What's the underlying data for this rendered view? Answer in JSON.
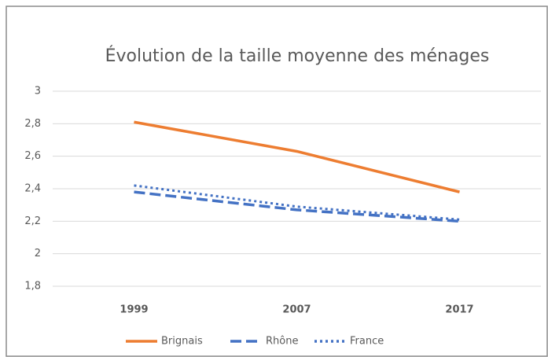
{
  "chart_data": {
    "type": "line",
    "title": "Évolution de la taille moyenne des ménages",
    "categories": [
      "1999",
      "2007",
      "2017"
    ],
    "series": [
      {
        "name": "Brignais",
        "color": "#ed7d31",
        "line_style": "solid",
        "values": [
          2.81,
          2.63,
          2.38
        ]
      },
      {
        "name": "Rhône",
        "color": "#4472c4",
        "line_style": "dashed",
        "values": [
          2.38,
          2.27,
          2.2
        ]
      },
      {
        "name": "France",
        "color": "#4472c4",
        "line_style": "dotted",
        "values": [
          2.42,
          2.29,
          2.21
        ]
      }
    ],
    "ylim": [
      1.8,
      3
    ],
    "yticks": [
      {
        "value": 1.8,
        "label": "1,8"
      },
      2,
      {
        "value": 2.2,
        "label": "2,2"
      },
      {
        "value": 2.4,
        "label": "2,4"
      },
      {
        "value": 2.6,
        "label": "2,6"
      },
      {
        "value": 2.8,
        "label": "2,8"
      },
      3
    ],
    "grid": true,
    "legend": "bottom"
  }
}
